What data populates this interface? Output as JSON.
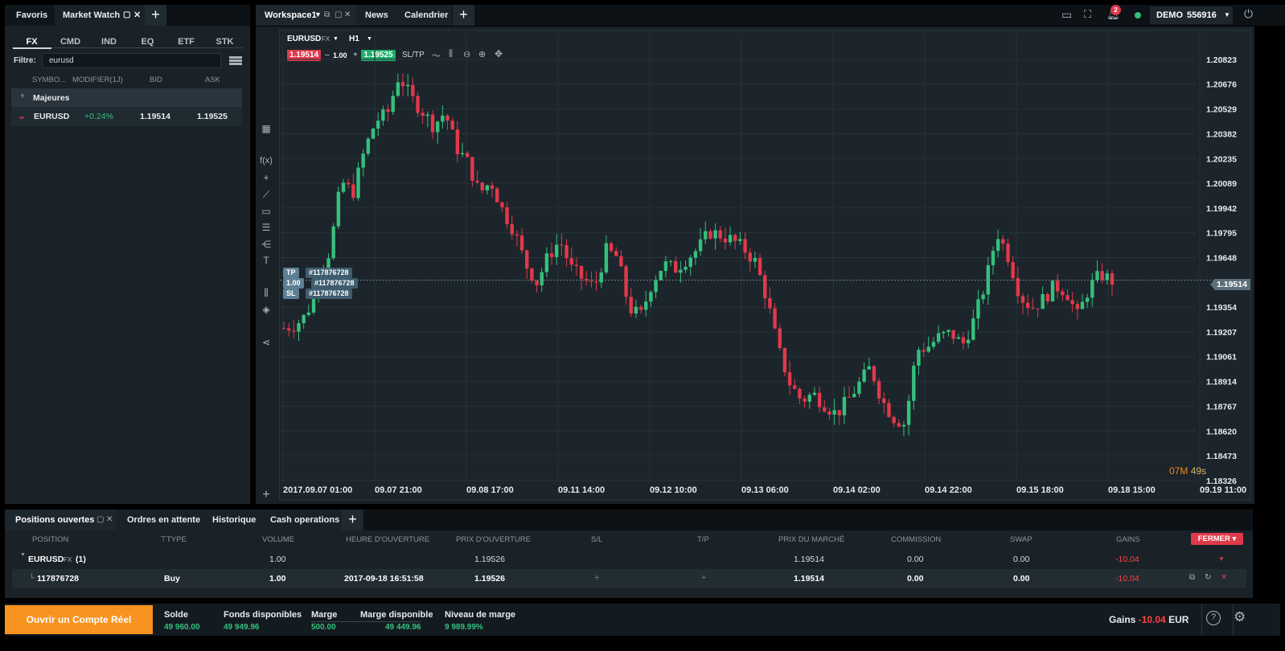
{
  "left_panel": {
    "tabs": [
      "Favoris",
      "Market Watch"
    ],
    "categories": [
      "FX",
      "CMD",
      "IND",
      "EQ",
      "ETF",
      "STK"
    ],
    "filter_label": "Filtre:",
    "filter_value": "eurusd",
    "columns": [
      "SYMBO...",
      "MODIFIER(1J)",
      "BID",
      "ASK"
    ],
    "group": "Majeures",
    "row": {
      "symbol": "EURUSD",
      "change": "+0.24%",
      "bid": "1.19514",
      "ask": "1.19525"
    }
  },
  "workspace_tabs": [
    "Workspace1",
    "News",
    "Calendrier"
  ],
  "header": {
    "notifications": "2",
    "account_type": "DEMO",
    "account_id": "556916"
  },
  "chart_toolbar": {
    "symbol": "EURUSD",
    "symbol_type": "FX",
    "timeframe": "H1",
    "sell_price": "1.19514",
    "minus": "–",
    "volume": "1.00",
    "plus": "+",
    "buy_price": "1.19525",
    "sltp": "SL/TP"
  },
  "chart_tags": {
    "tp_label": "TP",
    "tp_id": "#117876728",
    "pos_label": "1.00 ^",
    "pos_id": "#117876728",
    "sl_label": "SL",
    "sl_id": "#117876728"
  },
  "countdown": {
    "minutes": "07M",
    "seconds": "49s"
  },
  "chart_data": {
    "type": "candlestick",
    "symbol": "EURUSD",
    "timeframe": "H1",
    "y_ticks": [
      "1.20823",
      "1.20676",
      "1.20529",
      "1.20382",
      "1.20235",
      "1.20089",
      "1.19942",
      "1.19795",
      "1.19648",
      "1.19354",
      "1.19207",
      "1.19061",
      "1.18914",
      "1.18767",
      "1.18620",
      "1.18473",
      "1.18326"
    ],
    "x_ticks": [
      "2017.09.07 01:00",
      "09.07 21:00",
      "09.08 17:00",
      "09.11 14:00",
      "09.12 10:00",
      "09.13 06:00",
      "09.14 02:00",
      "09.14 22:00",
      "09.15 18:00",
      "09.18 15:00",
      "09.19 11:00"
    ],
    "ylim": [
      1.18326,
      1.2097
    ],
    "current_price": "1.19514",
    "close_path": [
      1.1923,
      1.1925,
      1.1931,
      1.1954,
      1.1969,
      1.201,
      1.2003,
      1.2028,
      1.2046,
      1.205,
      1.2073,
      1.206,
      1.2052,
      1.2043,
      1.2051,
      1.203,
      1.2021,
      1.2003,
      1.201,
      1.1993,
      1.1981,
      1.1961,
      1.195,
      1.1966,
      1.1975,
      1.1958,
      1.1952,
      1.1947,
      1.1969,
      1.1965,
      1.1935,
      1.193,
      1.195,
      1.1961,
      1.1958,
      1.1964,
      1.197,
      1.198,
      1.1978,
      1.1975,
      1.197,
      1.1962,
      1.194,
      1.191,
      1.189,
      1.188,
      1.1884,
      1.1878,
      1.1872,
      1.188,
      1.189,
      1.19,
      1.188,
      1.187,
      1.1866,
      1.191,
      1.1912,
      1.1918,
      1.192,
      1.1913,
      1.1928,
      1.195,
      1.198,
      1.1965,
      1.1942,
      1.1935,
      1.194,
      1.1948,
      1.1945,
      1.193,
      1.1947,
      1.1955,
      1.1951
    ],
    "grid": true
  },
  "positions": {
    "tabs": [
      "Positions ouvertes",
      "Ordres en attente",
      "Historique",
      "Cash operations"
    ],
    "columns": [
      "POSITION",
      "TYPE",
      "VOLUME",
      "HEURE D'OUVERTURE",
      "PRIX D'OUVERTURE",
      "S/L",
      "T/P",
      "PRIX DU MARCHÉ",
      "COMMISSION",
      "SWAP",
      "GAINS"
    ],
    "close_button": "FERMER",
    "group": {
      "symbol": "EURUSD",
      "type_tag": "FX",
      "count": "(1)",
      "volume": "1.00",
      "open_price": "1.19526",
      "market_price": "1.19514",
      "commission": "0.00",
      "swap": "0.00",
      "gains": "-10.04"
    },
    "row": {
      "id": "117876728",
      "type": "Buy",
      "volume": "1.00",
      "open_time": "2017-09-18 16:51:58",
      "open_price": "1.19526",
      "sl": "+",
      "tp": "+",
      "market_price": "1.19514",
      "commission": "0.00",
      "swap": "0.00",
      "gains": "-10.04"
    }
  },
  "footer": {
    "cta": "Ouvrir un Compte Réel",
    "solde_label": "Solde",
    "solde": "49 960.00",
    "fonds_label": "Fonds disponibles",
    "fonds": "49 949.96",
    "marge_label": "Marge",
    "marge": "500.00",
    "marge_dispo_label": "Marge disponible",
    "marge_dispo": "49 449.96",
    "niveau_label": "Niveau de marge",
    "niveau": "9 989.99%",
    "gains_label": "Gains",
    "gains": "-10.04",
    "currency": "EUR"
  },
  "colors": {
    "up": "#35c07d",
    "down": "#e0394a",
    "accent": "#f7931e",
    "sell": "#e0394a",
    "buy": "#1fae6a"
  }
}
